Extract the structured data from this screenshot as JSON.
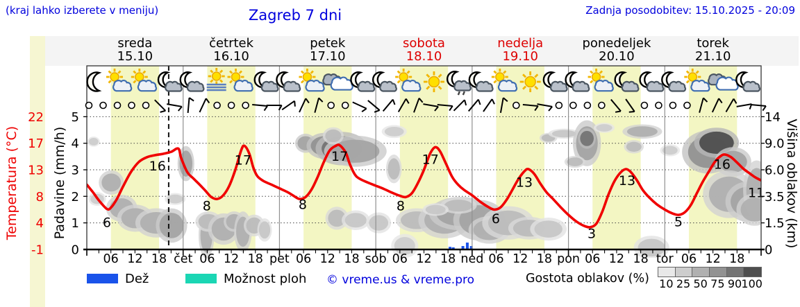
{
  "header": {
    "hint": "(kraj lahko izberete v meniju)",
    "title": "Zagreb 7 dni",
    "updated": "Zadnja posodobitev: 15.10.2025 - 20:09"
  },
  "colors": {
    "accent_blue": "#0000dd",
    "temp_red": "#f00000",
    "rain_blue": "#1a53ea",
    "showers_teal": "#1bd6b4",
    "day_band": "#f3f6c3",
    "header_band": "#f4f4f4",
    "left_strip": "#f6f6d2",
    "grid": "#444444",
    "separator": "#909090"
  },
  "days": [
    {
      "name": "sreda",
      "date": "15.10",
      "color": "#000000",
      "icons": [
        "moon",
        "sun-cloud",
        "sun-cloud",
        "moon-cloud"
      ]
    },
    {
      "name": "četrtek",
      "date": "16.10",
      "color": "#000000",
      "icons": [
        "moon-cloud",
        "sun-fog",
        "sun-cloud",
        "moon-cloud"
      ]
    },
    {
      "name": "petek",
      "date": "17.10",
      "color": "#000000",
      "icons": [
        "moon-cloud",
        "sun-cloud",
        "clouds",
        "moon-cloud"
      ]
    },
    {
      "name": "sobota",
      "date": "18.10",
      "color": "#dd0000",
      "icons": [
        "moon-cloud",
        "sun-cloud",
        "sun",
        "moon-cloud-rain"
      ]
    },
    {
      "name": "nedelja",
      "date": "19.10",
      "color": "#dd0000",
      "icons": [
        "moon-cloud",
        "sun-cloud",
        "sun",
        "moon-cloud"
      ]
    },
    {
      "name": "ponedeljek",
      "date": "20.10",
      "color": "#000000",
      "icons": [
        "moon-cloud",
        "sun-cloud",
        "moon-cloud",
        "moon-cloud"
      ]
    },
    {
      "name": "torek",
      "date": "21.10",
      "color": "#000000",
      "icons": [
        "moon-cloud",
        "sun-cloud",
        "clouds",
        "moon-cloud"
      ]
    }
  ],
  "axes": {
    "temp": {
      "label": "Temperatura (°C)",
      "ticks": [
        "22",
        "17",
        "13",
        "8",
        "4",
        "-1"
      ]
    },
    "precip": {
      "label": "Padavine (mm/h)",
      "ticks": [
        "5",
        "4",
        "3",
        "2",
        "1",
        "0"
      ]
    },
    "cloud": {
      "label": "Višina oblakov (km)",
      "ticks": [
        "14",
        "9.0",
        "6.0",
        "3.5",
        "1.5",
        "0"
      ]
    },
    "hours": [
      "06",
      "12",
      "18"
    ],
    "day_abbr": [
      "čet",
      "pet",
      "sob",
      "ned",
      "pon",
      "tor"
    ]
  },
  "chart_data": {
    "type": "line",
    "title": "Zagreb 7 dni",
    "x_unit": "hours from 15.10.2025 00:00",
    "temp_axis_anchors": {
      "temps": [
        -1,
        4,
        8,
        13,
        17,
        22
      ],
      "note": "nonlinear left axis"
    },
    "cloud_axis_anchors": {
      "km": [
        0,
        1.5,
        3.5,
        6,
        9,
        14
      ],
      "note": "nonlinear right axis"
    },
    "now_line_h": 20.4,
    "temp_series": {
      "name": "Temperatura",
      "unit": "°C",
      "points": [
        [
          0,
          10.2
        ],
        [
          1.5,
          8.8
        ],
        [
          3,
          7.4
        ],
        [
          5,
          6.1
        ],
        [
          6,
          6.3
        ],
        [
          7.5,
          7.6
        ],
        [
          9,
          9.8
        ],
        [
          11,
          12.6
        ],
        [
          13,
          14.2
        ],
        [
          15,
          14.9
        ],
        [
          17,
          15.2
        ],
        [
          19,
          15.4
        ],
        [
          21,
          15.7
        ],
        [
          22.8,
          16.2
        ],
        [
          23.5,
          14.8
        ],
        [
          25,
          12.6
        ],
        [
          26.5,
          11.4
        ],
        [
          28,
          10.3
        ],
        [
          29.5,
          9.1
        ],
        [
          31,
          7.9
        ],
        [
          32.5,
          7.6
        ],
        [
          34,
          8.2
        ],
        [
          35.5,
          10
        ],
        [
          37,
          13
        ],
        [
          38.5,
          16
        ],
        [
          39.3,
          16.6
        ],
        [
          40.5,
          15.4
        ],
        [
          41.5,
          13.3
        ],
        [
          42.5,
          11.8
        ],
        [
          44,
          10.9
        ],
        [
          46,
          10.2
        ],
        [
          48,
          9.5
        ],
        [
          50,
          8.8
        ],
        [
          51.5,
          8.1
        ],
        [
          53,
          7.6
        ],
        [
          54.5,
          7.9
        ],
        [
          56,
          9.3
        ],
        [
          57.5,
          11.6
        ],
        [
          59,
          14.1
        ],
        [
          60.5,
          15.9
        ],
        [
          62,
          16.6
        ],
        [
          63,
          16.7
        ],
        [
          64.5,
          15.6
        ],
        [
          65.5,
          13.9
        ],
        [
          66.8,
          12.1
        ],
        [
          68,
          11.3
        ],
        [
          70,
          10.6
        ],
        [
          72,
          10
        ],
        [
          74,
          9.4
        ],
        [
          76,
          8.7
        ],
        [
          78,
          8.1
        ],
        [
          79.5,
          7.9
        ],
        [
          81,
          8.6
        ],
        [
          82.5,
          10.5
        ],
        [
          84,
          13
        ],
        [
          85.5,
          15.4
        ],
        [
          86.8,
          16.4
        ],
        [
          88,
          15.8
        ],
        [
          89.5,
          13.9
        ],
        [
          91,
          11.7
        ],
        [
          92.5,
          10.2
        ],
        [
          94,
          9.2
        ],
        [
          96,
          8.2
        ],
        [
          98,
          7.2
        ],
        [
          100,
          6.4
        ],
        [
          101.5,
          6.0
        ],
        [
          103,
          6.3
        ],
        [
          104.5,
          7.4
        ],
        [
          106,
          9.2
        ],
        [
          107.5,
          11.2
        ],
        [
          109,
          12.7
        ],
        [
          110,
          13.1
        ],
        [
          111.5,
          12.2
        ],
        [
          113,
          10.4
        ],
        [
          114.5,
          8.8
        ],
        [
          116,
          7.7
        ],
        [
          118,
          6.4
        ],
        [
          120,
          5.2
        ],
        [
          122,
          4.2
        ],
        [
          124,
          3.4
        ],
        [
          125.5,
          3.2
        ],
        [
          127,
          3.9
        ],
        [
          128.5,
          5.8
        ],
        [
          130,
          8.4
        ],
        [
          131.5,
          10.9
        ],
        [
          133,
          12.5
        ],
        [
          134.3,
          13.1
        ],
        [
          135.5,
          12.6
        ],
        [
          137,
          11.1
        ],
        [
          138.5,
          9.2
        ],
        [
          140,
          7.9
        ],
        [
          142,
          6.8
        ],
        [
          144,
          6.0
        ],
        [
          146,
          5.4
        ],
        [
          147.5,
          5.2
        ],
        [
          149,
          5.6
        ],
        [
          150.5,
          6.7
        ],
        [
          152,
          8.6
        ],
        [
          153.5,
          10.8
        ],
        [
          155,
          12.7
        ],
        [
          156.5,
          14.2
        ],
        [
          158,
          15.1
        ],
        [
          159,
          15.3
        ],
        [
          160.5,
          14.9
        ],
        [
          162,
          14.1
        ],
        [
          163.5,
          13.2
        ],
        [
          165,
          12.4
        ],
        [
          166.5,
          11.6
        ],
        [
          168,
          11.0
        ]
      ]
    },
    "extreme_labels": [
      [
        5.0,
        4.0,
        "6"
      ],
      [
        17.6,
        13.5,
        "16"
      ],
      [
        29.9,
        6.5,
        "8"
      ],
      [
        38.9,
        14.4,
        "17"
      ],
      [
        53.8,
        6.7,
        "8"
      ],
      [
        63.0,
        15.0,
        "17"
      ],
      [
        78.2,
        6.5,
        "8"
      ],
      [
        85.6,
        14.5,
        "17"
      ],
      [
        101.9,
        4.6,
        "6"
      ],
      [
        109.0,
        10.6,
        "13"
      ],
      [
        125.8,
        1.9,
        "3"
      ],
      [
        134.6,
        10.9,
        "13"
      ],
      [
        147.4,
        4.1,
        "5"
      ],
      [
        158.3,
        13.8,
        "16"
      ],
      [
        166.8,
        8.6,
        "11"
      ]
    ],
    "rain_bars": [
      [
        90.5,
        0.1
      ],
      [
        91.3,
        0.08
      ],
      [
        93.7,
        0.13
      ],
      [
        94.8,
        0.26
      ],
      [
        95.8,
        0.13
      ]
    ],
    "clouds": [
      [
        1.7,
        9.3,
        1.2,
        0.6,
        25
      ],
      [
        6.1,
        4.8,
        2.4,
        0.85,
        50
      ],
      [
        2.6,
        3.3,
        1.7,
        0.4,
        25
      ],
      [
        8.7,
        2.6,
        3.0,
        0.75,
        50
      ],
      [
        12.1,
        1.85,
        3.5,
        0.7,
        50
      ],
      [
        17.3,
        1.5,
        4.0,
        0.7,
        50
      ],
      [
        21.1,
        1.35,
        3.0,
        0.8,
        60
      ],
      [
        29.8,
        0.8,
        1.5,
        1.0,
        50
      ],
      [
        24.7,
        6.7,
        1.6,
        1.4,
        60
      ],
      [
        22.0,
        3.3,
        2.0,
        0.35,
        25
      ],
      [
        30.3,
        1.6,
        2.5,
        0.5,
        40
      ],
      [
        34.1,
        1.15,
        3.0,
        0.7,
        50
      ],
      [
        36.7,
        1.6,
        2.0,
        0.5,
        50
      ],
      [
        38.9,
        1.0,
        1.7,
        0.9,
        50
      ],
      [
        41.7,
        1.35,
        2.0,
        0.5,
        40
      ],
      [
        44.3,
        1.1,
        1.4,
        0.5,
        30
      ],
      [
        54.5,
        9.0,
        2.0,
        1.0,
        60
      ],
      [
        59.3,
        8.7,
        3.5,
        1.3,
        75
      ],
      [
        63.5,
        8.4,
        5.0,
        1.6,
        90
      ],
      [
        66.9,
        8.1,
        6.0,
        1.4,
        60
      ],
      [
        61.4,
        10.4,
        2.0,
        1.2,
        40
      ],
      [
        76.5,
        6.1,
        1.5,
        1.1,
        40
      ],
      [
        76.6,
        11.2,
        2.4,
        0.9,
        25
      ],
      [
        62.3,
        1.85,
        2.2,
        0.6,
        40
      ],
      [
        67.0,
        1.7,
        2.7,
        0.5,
        30
      ],
      [
        72.7,
        1.5,
        2.4,
        0.5,
        30
      ],
      [
        82.2,
        1.7,
        4.0,
        0.6,
        40
      ],
      [
        89.1,
        1.7,
        5.0,
        0.9,
        50
      ],
      [
        93.1,
        2.2,
        6.0,
        0.9,
        60
      ],
      [
        97.8,
        1.7,
        5.0,
        1.0,
        60
      ],
      [
        100.3,
        1.1,
        4.0,
        0.6,
        50
      ],
      [
        105.0,
        1.5,
        5.0,
        0.8,
        40
      ],
      [
        110.2,
        1.2,
        4.0,
        0.5,
        40
      ],
      [
        115.0,
        1.15,
        3.5,
        0.5,
        30
      ],
      [
        92.6,
        2.8,
        3.5,
        0.45,
        40
      ],
      [
        86.9,
        2.5,
        2.5,
        0.35,
        30
      ],
      [
        115.0,
        10.0,
        1.7,
        0.7,
        40
      ],
      [
        118.9,
        10.8,
        3.0,
        0.7,
        30
      ],
      [
        124.6,
        9.0,
        2.7,
        2.4,
        60
      ],
      [
        124.6,
        9.9,
        1.7,
        1.3,
        90
      ],
      [
        121.6,
        6.9,
        2.0,
        0.5,
        40
      ],
      [
        128.9,
        11.9,
        2.0,
        0.7,
        25
      ],
      [
        138.4,
        11.2,
        3.8,
        1.0,
        50
      ],
      [
        136.3,
        8.6,
        1.9,
        0.6,
        40
      ],
      [
        145.3,
        8.2,
        1.9,
        0.5,
        25
      ],
      [
        154.8,
        8.0,
        5.0,
        2.0,
        75
      ],
      [
        156.9,
        9.1,
        4.3,
        1.6,
        100
      ],
      [
        161.0,
        6.9,
        3.5,
        1.2,
        60
      ],
      [
        160.0,
        3.7,
        5.0,
        1.5,
        50
      ],
      [
        164.7,
        3.1,
        4.3,
        1.2,
        60
      ],
      [
        166.9,
        4.1,
        2.6,
        1.9,
        50
      ],
      [
        166.4,
        2.5,
        3.5,
        0.9,
        50
      ],
      [
        79.2,
        0.2,
        2.6,
        0.5,
        25
      ],
      [
        140.7,
        0.1,
        3.4,
        0.5,
        30
      ]
    ],
    "wind": [
      "o",
      "o",
      "o",
      "o",
      "o",
      135,
      100,
      5,
      25,
      "o",
      "o",
      "o",
      95,
      90,
      55,
      25,
      15,
      "o",
      "o",
      115,
      130,
      40,
      30,
      20,
      100,
      95,
      45,
      40,
      35,
      10,
      "o",
      95,
      100,
      "o",
      "o",
      "o",
      "o",
      140,
      145,
      "o",
      "o",
      "o",
      "o",
      15,
      25,
      30,
      80,
      95
    ]
  },
  "legend": {
    "rain": "Dež",
    "showers": "Možnost ploh",
    "copyright": "© vreme.us & vreme.pro",
    "cloud_density_label": "Gostota oblakov (%)",
    "density_ticks": [
      "10",
      "25",
      "50",
      "75",
      "90",
      "100"
    ],
    "density_colors": [
      "#e8e8e8",
      "#cdcdcd",
      "#b0b0b0",
      "#929292",
      "#747474",
      "#4e4e4e"
    ]
  }
}
